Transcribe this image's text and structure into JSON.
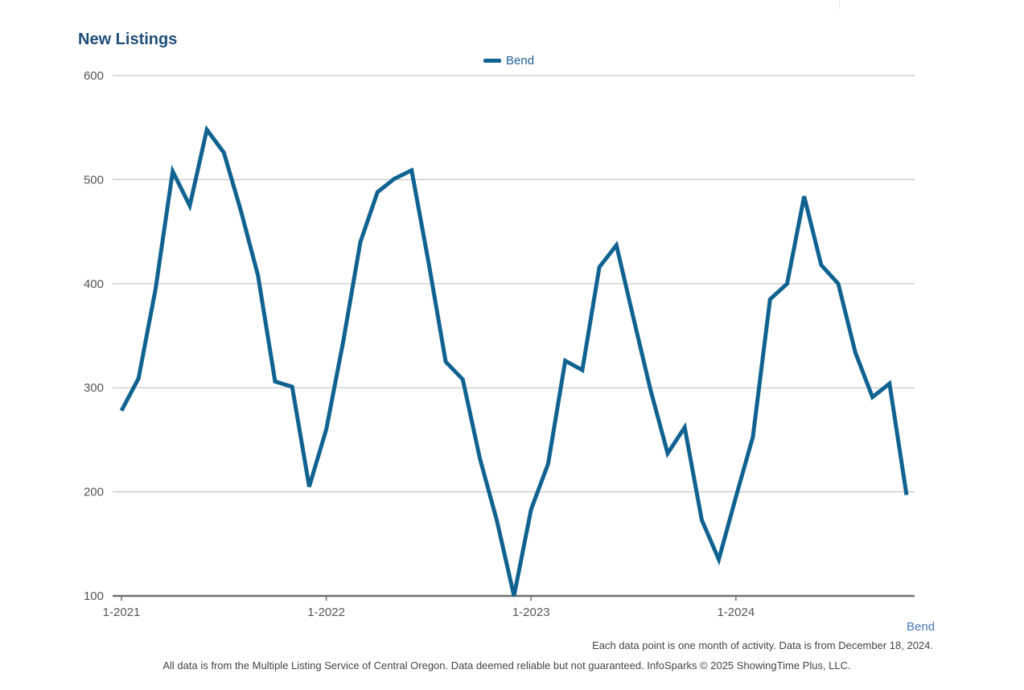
{
  "chart_data": {
    "type": "line",
    "title": "New Listings",
    "ylim": [
      100,
      600
    ],
    "yticks": [
      600,
      500,
      400,
      300,
      200,
      100
    ],
    "xtick_labels": [
      "1-2021",
      "1-2022",
      "1-2023",
      "1-2024"
    ],
    "xtick_indices": [
      0,
      12,
      24,
      36
    ],
    "grid": true,
    "legend_position": "top-center",
    "x": [
      "1-2021",
      "2-2021",
      "3-2021",
      "4-2021",
      "5-2021",
      "6-2021",
      "7-2021",
      "8-2021",
      "9-2021",
      "10-2021",
      "11-2021",
      "12-2021",
      "1-2022",
      "2-2022",
      "3-2022",
      "4-2022",
      "5-2022",
      "6-2022",
      "7-2022",
      "8-2022",
      "9-2022",
      "10-2022",
      "11-2022",
      "12-2022",
      "1-2023",
      "2-2023",
      "3-2023",
      "4-2023",
      "5-2023",
      "6-2023",
      "7-2023",
      "8-2023",
      "9-2023",
      "10-2023",
      "11-2023",
      "12-2023",
      "1-2024",
      "2-2024",
      "3-2024",
      "4-2024",
      "5-2024",
      "6-2024",
      "7-2024",
      "8-2024",
      "9-2024",
      "10-2024",
      "11-2024"
    ],
    "series": [
      {
        "name": "Bend",
        "color": "#106291",
        "values": [
          278,
          309,
          395,
          508,
          475,
          548,
          526,
          470,
          408,
          306,
          301,
          205,
          260,
          345,
          440,
          488,
          501,
          509,
          420,
          325,
          308,
          232,
          172,
          100,
          183,
          227,
          326,
          317,
          416,
          437,
          367,
          298,
          237,
          262,
          173,
          135,
          195,
          253,
          385,
          400,
          484,
          418,
          400,
          334,
          291,
          304,
          197
        ]
      }
    ]
  },
  "labels": {
    "corner_series_label": "Bend",
    "footnote": "Each data point is one month of activity. Data is from December 18, 2024.",
    "disclaimer": "All data is from the Multiple Listing Service of Central Oregon. Data deemed reliable but not guaranteed. InfoSparks © 2025 ShowingTime Plus, LLC."
  }
}
